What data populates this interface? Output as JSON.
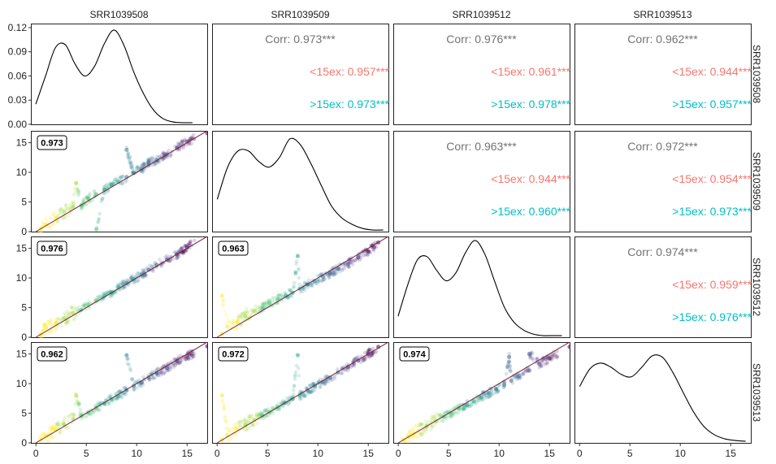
{
  "samples": [
    "SRR1039508",
    "SRR1039509",
    "SRR1039512",
    "SRR1039513"
  ],
  "colors": {
    "corr_overall": "#737373",
    "corr_low": "#f8766d",
    "corr_high": "#00bfc4",
    "identity_line": "#7a1f3d",
    "density_line": "#000000",
    "panel_border": "#222222",
    "point_palette": [
      "#fde725",
      "#a0da39",
      "#4ac16d",
      "#1fa187",
      "#277f8e",
      "#365c8d",
      "#46327e",
      "#440154"
    ]
  },
  "chart_data": {
    "type": "scatter",
    "layout": "pairs-matrix",
    "rows": [
      "SRR1039508",
      "SRR1039509",
      "SRR1039512",
      "SRR1039513"
    ],
    "columns": [
      "SRR1039508",
      "SRR1039509",
      "SRR1039512",
      "SRR1039513"
    ],
    "density_y_ticks": [
      0.0,
      0.03,
      0.06,
      0.09,
      0.12
    ],
    "density_y_tick_labels": [
      "0.00",
      "0.03",
      "0.06",
      "0.09",
      "0.12"
    ],
    "density_ylim": [
      0,
      0.125
    ],
    "scatter_y_ticks": [
      0,
      5,
      10,
      15
    ],
    "scatter_y_tick_labels": [
      "0",
      "5",
      "10",
      "15"
    ],
    "scatter_ylim": [
      0,
      17
    ],
    "x_ticks": [
      0,
      5,
      10,
      15
    ],
    "x_tick_labels": [
      "0",
      "5",
      "10",
      "15"
    ],
    "xlim": [
      -0.5,
      17
    ],
    "density_xlims": [
      [
        -0.5,
        17.5
      ],
      [
        -0.5,
        16.5
      ],
      [
        -0.5,
        17.8
      ],
      [
        -0.5,
        16.5
      ]
    ],
    "diagonal_density": [
      {
        "sample": "SRR1039508",
        "x": [
          0.0,
          1.0,
          2.0,
          3.0,
          4.0,
          5.0,
          6.0,
          7.0,
          8.0,
          9.0,
          10.0,
          11.0,
          12.0,
          13.0,
          14.0,
          15.0,
          16.0
        ],
        "y": [
          0.025,
          0.06,
          0.095,
          0.099,
          0.075,
          0.06,
          0.072,
          0.1,
          0.117,
          0.098,
          0.065,
          0.038,
          0.018,
          0.007,
          0.003,
          0.002,
          0.002
        ]
      },
      {
        "sample": "SRR1039509",
        "x": [
          0.0,
          1.0,
          2.0,
          3.0,
          4.0,
          5.0,
          6.0,
          7.0,
          8.0,
          9.0,
          10.0,
          11.0,
          12.0,
          13.0,
          14.0,
          15.0,
          16.0
        ],
        "y": [
          0.04,
          0.08,
          0.1,
          0.1,
          0.087,
          0.08,
          0.092,
          0.115,
          0.108,
          0.085,
          0.058,
          0.032,
          0.017,
          0.009,
          0.004,
          0.002,
          0.002
        ]
      },
      {
        "sample": "SRR1039512",
        "x": [
          0.0,
          1.0,
          2.0,
          3.0,
          4.0,
          5.0,
          6.0,
          7.0,
          8.0,
          9.0,
          10.0,
          11.0,
          12.0,
          13.0,
          14.0,
          15.0,
          16.0,
          17.0
        ],
        "y": [
          0.026,
          0.065,
          0.096,
          0.1,
          0.083,
          0.07,
          0.08,
          0.105,
          0.12,
          0.103,
          0.07,
          0.038,
          0.019,
          0.009,
          0.004,
          0.002,
          0.002,
          0.002
        ]
      },
      {
        "sample": "SRR1039513",
        "x": [
          0.0,
          1.0,
          2.0,
          3.0,
          4.0,
          5.0,
          6.0,
          7.0,
          8.0,
          9.0,
          10.0,
          11.0,
          12.0,
          13.0,
          14.0,
          15.0,
          16.0
        ],
        "y": [
          0.07,
          0.092,
          0.099,
          0.094,
          0.085,
          0.082,
          0.094,
          0.108,
          0.106,
          0.087,
          0.062,
          0.038,
          0.02,
          0.01,
          0.005,
          0.003,
          0.002
        ]
      }
    ],
    "correlations": [
      {
        "row": "SRR1039508",
        "column": "SRR1039509",
        "corr": "Corr: 0.973***",
        "low": "<15ex: 0.957***",
        "high": ">15ex: 0.973***"
      },
      {
        "row": "SRR1039508",
        "column": "SRR1039512",
        "corr": "Corr: 0.976***",
        "low": "<15ex: 0.961***",
        "high": ">15ex: 0.978***"
      },
      {
        "row": "SRR1039508",
        "column": "SRR1039513",
        "corr": "Corr: 0.962***",
        "low": "<15ex: 0.944***",
        "high": ">15ex: 0.957***"
      },
      {
        "row": "SRR1039509",
        "column": "SRR1039512",
        "corr": "Corr: 0.963***",
        "low": "<15ex: 0.944***",
        "high": ">15ex: 0.960***"
      },
      {
        "row": "SRR1039509",
        "column": "SRR1039513",
        "corr": "Corr: 0.972***",
        "low": "<15ex: 0.954***",
        "high": ">15ex: 0.973***"
      },
      {
        "row": "SRR1039512",
        "column": "SRR1039513",
        "corr": "Corr: 0.974***",
        "low": "<15ex: 0.959***",
        "high": ">15ex: 0.976***"
      }
    ],
    "scatter_badges": [
      {
        "row": "SRR1039509",
        "column": "SRR1039508",
        "label": "0.973"
      },
      {
        "row": "SRR1039512",
        "column": "SRR1039508",
        "label": "0.976"
      },
      {
        "row": "SRR1039512",
        "column": "SRR1039509",
        "label": "0.963"
      },
      {
        "row": "SRR1039513",
        "column": "SRR1039508",
        "label": "0.962"
      },
      {
        "row": "SRR1039513",
        "column": "SRR1039509",
        "label": "0.972"
      },
      {
        "row": "SRR1039513",
        "column": "SRR1039512",
        "label": "0.974"
      }
    ],
    "scatter_points": [
      {
        "row": "SRR1039509",
        "column": "SRR1039508",
        "points": [
          [
            0.5,
            0.5
          ],
          [
            1.0,
            1.2
          ],
          [
            2.0,
            2.3
          ],
          [
            2.8,
            3.4
          ],
          [
            3.7,
            4.2
          ],
          [
            4.5,
            4.4
          ],
          [
            5.2,
            5.6
          ],
          [
            6.0,
            6.3
          ],
          [
            6.8,
            7.1
          ],
          [
            7.5,
            7.9
          ],
          [
            8.2,
            8.4
          ],
          [
            9.0,
            9.2
          ],
          [
            9.7,
            9.9
          ],
          [
            10.5,
            10.6
          ],
          [
            11.2,
            11.6
          ],
          [
            12.0,
            12.1
          ],
          [
            13.0,
            13.0
          ],
          [
            14.0,
            14.1
          ],
          [
            15.0,
            15.2
          ],
          [
            17.0,
            16.6
          ],
          [
            4.0,
            8.2
          ],
          [
            6.0,
            0.4
          ],
          [
            9.0,
            13.8
          ]
        ]
      },
      {
        "row": "SRR1039512",
        "column": "SRR1039508",
        "points": [
          [
            0.5,
            0.5
          ],
          [
            1.0,
            1.6
          ],
          [
            2.0,
            2.3
          ],
          [
            2.8,
            3.2
          ],
          [
            3.7,
            4.1
          ],
          [
            4.5,
            4.6
          ],
          [
            5.2,
            5.5
          ],
          [
            6.0,
            6.2
          ],
          [
            6.8,
            7.0
          ],
          [
            7.5,
            7.6
          ],
          [
            8.2,
            8.5
          ],
          [
            9.0,
            9.1
          ],
          [
            9.7,
            9.8
          ],
          [
            10.5,
            10.6
          ],
          [
            11.2,
            11.4
          ],
          [
            12.0,
            12.2
          ],
          [
            13.0,
            13.1
          ],
          [
            14.0,
            14.0
          ],
          [
            15.0,
            15.2
          ],
          [
            17.0,
            17.2
          ]
        ]
      },
      {
        "row": "SRR1039512",
        "column": "SRR1039509",
        "points": [
          [
            0.5,
            0.5
          ],
          [
            1.0,
            1.8
          ],
          [
            2.0,
            2.6
          ],
          [
            2.8,
            3.6
          ],
          [
            3.7,
            4.5
          ],
          [
            4.5,
            4.9
          ],
          [
            5.2,
            5.8
          ],
          [
            6.0,
            6.4
          ],
          [
            6.8,
            7.0
          ],
          [
            7.5,
            7.5
          ],
          [
            8.2,
            8.2
          ],
          [
            9.0,
            8.9
          ],
          [
            9.7,
            9.5
          ],
          [
            10.5,
            10.2
          ],
          [
            11.2,
            10.8
          ],
          [
            12.0,
            11.6
          ],
          [
            13.0,
            12.4
          ],
          [
            14.0,
            13.5
          ],
          [
            15.0,
            14.5
          ],
          [
            16.0,
            16.0
          ],
          [
            0.5,
            7.0
          ],
          [
            8.0,
            13.7
          ]
        ]
      },
      {
        "row": "SRR1039513",
        "column": "SRR1039508",
        "points": [
          [
            0.5,
            0.5
          ],
          [
            1.0,
            1.2
          ],
          [
            2.0,
            2.2
          ],
          [
            2.8,
            3.1
          ],
          [
            3.7,
            4.0
          ],
          [
            4.5,
            4.6
          ],
          [
            5.2,
            5.1
          ],
          [
            6.0,
            5.9
          ],
          [
            6.8,
            6.6
          ],
          [
            7.5,
            7.4
          ],
          [
            8.2,
            7.9
          ],
          [
            9.0,
            8.9
          ],
          [
            9.7,
            9.6
          ],
          [
            10.5,
            10.2
          ],
          [
            11.2,
            11.0
          ],
          [
            12.0,
            11.8
          ],
          [
            13.0,
            12.6
          ],
          [
            14.0,
            13.8
          ],
          [
            15.0,
            14.6
          ],
          [
            17.0,
            16.3
          ],
          [
            9.0,
            14.8
          ],
          [
            4.0,
            8.0
          ]
        ]
      },
      {
        "row": "SRR1039513",
        "column": "SRR1039509",
        "points": [
          [
            0.5,
            0.5
          ],
          [
            1.0,
            1.3
          ],
          [
            2.0,
            2.4
          ],
          [
            2.8,
            3.0
          ],
          [
            3.7,
            3.9
          ],
          [
            4.5,
            4.6
          ],
          [
            5.2,
            5.2
          ],
          [
            6.0,
            6.0
          ],
          [
            6.8,
            6.8
          ],
          [
            7.5,
            7.4
          ],
          [
            8.2,
            8.0
          ],
          [
            9.0,
            8.8
          ],
          [
            9.7,
            9.6
          ],
          [
            10.5,
            10.3
          ],
          [
            11.2,
            11.0
          ],
          [
            12.0,
            11.9
          ],
          [
            13.0,
            12.8
          ],
          [
            14.0,
            13.9
          ],
          [
            15.0,
            15.0
          ],
          [
            16.0,
            16.2
          ],
          [
            8.0,
            14.8
          ],
          [
            0.5,
            8.0
          ]
        ]
      },
      {
        "row": "SRR1039513",
        "column": "SRR1039512",
        "points": [
          [
            0.5,
            0.5
          ],
          [
            1.0,
            1.1
          ],
          [
            2.0,
            2.0
          ],
          [
            2.8,
            2.8
          ],
          [
            3.7,
            3.7
          ],
          [
            4.5,
            4.4
          ],
          [
            5.2,
            5.0
          ],
          [
            6.0,
            5.8
          ],
          [
            6.8,
            6.4
          ],
          [
            7.5,
            7.0
          ],
          [
            8.2,
            7.7
          ],
          [
            9.0,
            8.4
          ],
          [
            9.7,
            9.1
          ],
          [
            10.5,
            9.8
          ],
          [
            11.2,
            10.5
          ],
          [
            12.0,
            11.3
          ],
          [
            13.0,
            12.2
          ],
          [
            14.0,
            13.3
          ],
          [
            15.0,
            14.3
          ],
          [
            17.0,
            16.2
          ],
          [
            13.0,
            15.0
          ],
          [
            11.0,
            14.5
          ]
        ]
      }
    ]
  }
}
